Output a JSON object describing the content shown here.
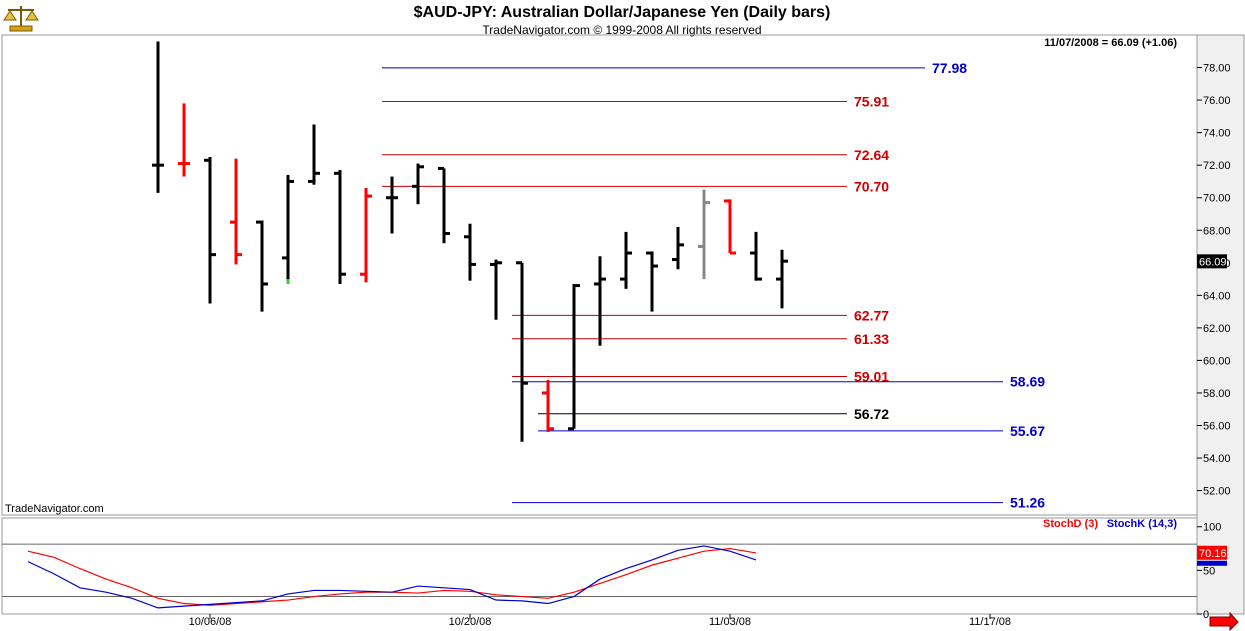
{
  "header": {
    "title": "$AUD-JPY:  Australian Dollar/Japanese Yen  (Daily bars)",
    "copyright": "TradeNavigator.com © 1999-2008 All rights reserved",
    "last_value": "11/07/2008 = 66.09 (+1.06)",
    "watermark": "TradeNavigator.com",
    "logo_icon": "balance-scale-icon"
  },
  "colors": {
    "up": "#000000",
    "down": "#ff0000",
    "red_level": "#cc0000",
    "blue_level": "#0000cc",
    "stoch_d": "#ff0000",
    "stoch_k": "#0000cc"
  },
  "chart_data": [
    {
      "type": "ohlc",
      "title": "$AUD-JPY:  Australian Dollar/Japanese Yen  (Daily bars)",
      "ylim": [
        50.5,
        80
      ],
      "y_ticks": [
        "52.00",
        "54.00",
        "56.00",
        "58.00",
        "60.00",
        "62.00",
        "64.00",
        "66.00",
        "68.00",
        "70.00",
        "72.00",
        "74.00",
        "76.00",
        "78.00"
      ],
      "x_ticks": [
        {
          "label": "10/06/08",
          "index": 2
        },
        {
          "label": "10/20/08",
          "index": 12
        },
        {
          "label": "11/03/08",
          "index": 22
        },
        {
          "label": "11/17/08",
          "index": 32
        }
      ],
      "current_price": "66.09",
      "bars": [
        {
          "i": 0,
          "o": 72.0,
          "h": 79.6,
          "l": 70.3,
          "c": 72.0,
          "color": "black"
        },
        {
          "i": 1,
          "o": 72.1,
          "h": 75.8,
          "l": 71.3,
          "c": 72.1,
          "color": "red"
        },
        {
          "i": 2,
          "o": 72.3,
          "h": 72.5,
          "l": 63.5,
          "c": 66.5,
          "color": "black"
        },
        {
          "i": 3,
          "o": 68.5,
          "h": 72.4,
          "l": 65.9,
          "c": 66.5,
          "color": "red"
        },
        {
          "i": 4,
          "o": 68.5,
          "h": 68.6,
          "l": 63.0,
          "c": 64.7,
          "color": "black"
        },
        {
          "i": 5,
          "o": 66.3,
          "h": 71.4,
          "l": 64.7,
          "c": 71.0,
          "color": "black"
        },
        {
          "i": 6,
          "o": 71.0,
          "h": 74.5,
          "l": 70.8,
          "c": 71.5,
          "color": "black"
        },
        {
          "i": 7,
          "o": 71.5,
          "h": 71.7,
          "l": 64.7,
          "c": 65.3,
          "color": "black"
        },
        {
          "i": 8,
          "o": 65.3,
          "h": 70.6,
          "l": 64.8,
          "c": 70.1,
          "color": "red"
        },
        {
          "i": 9,
          "o": 70.0,
          "h": 71.3,
          "l": 67.8,
          "c": 70.0,
          "color": "black"
        },
        {
          "i": 10,
          "o": 70.7,
          "h": 72.1,
          "l": 69.6,
          "c": 71.9,
          "color": "black"
        },
        {
          "i": 11,
          "o": 71.8,
          "h": 71.8,
          "l": 67.2,
          "c": 67.8,
          "color": "black"
        },
        {
          "i": 12,
          "o": 67.6,
          "h": 68.4,
          "l": 64.9,
          "c": 65.9,
          "color": "black"
        },
        {
          "i": 13,
          "o": 65.9,
          "h": 66.2,
          "l": 62.5,
          "c": 66.0,
          "color": "black"
        },
        {
          "i": 14,
          "o": 66.0,
          "h": 66.0,
          "l": 55.0,
          "c": 58.6,
          "color": "black"
        },
        {
          "i": 15,
          "o": 58.0,
          "h": 58.8,
          "l": 55.6,
          "c": 55.8,
          "color": "red"
        },
        {
          "i": 16,
          "o": 55.8,
          "h": 64.7,
          "l": 55.8,
          "c": 64.6,
          "color": "black"
        },
        {
          "i": 17,
          "o": 64.7,
          "h": 66.4,
          "l": 60.9,
          "c": 65.0,
          "color": "black"
        },
        {
          "i": 18,
          "o": 65.0,
          "h": 67.9,
          "l": 64.4,
          "c": 66.6,
          "color": "black"
        },
        {
          "i": 19,
          "o": 66.6,
          "h": 66.7,
          "l": 63.0,
          "c": 65.8,
          "color": "black"
        },
        {
          "i": 20,
          "o": 66.2,
          "h": 68.2,
          "l": 65.6,
          "c": 67.1,
          "color": "black"
        },
        {
          "i": 21,
          "o": 67.0,
          "h": 70.5,
          "l": 65.0,
          "c": 69.7,
          "color": "gray"
        },
        {
          "i": 22,
          "o": 69.8,
          "h": 69.9,
          "l": 66.6,
          "c": 66.6,
          "color": "red"
        },
        {
          "i": 23,
          "o": 66.6,
          "h": 67.9,
          "l": 64.9,
          "c": 65.0,
          "color": "black"
        },
        {
          "i": 24,
          "o": 65.0,
          "h": 66.8,
          "l": 63.2,
          "c": 66.1,
          "color": "black"
        }
      ],
      "levels": [
        {
          "value": 77.98,
          "label": "77.98",
          "color": "blue",
          "from": 9,
          "to": 29.5
        },
        {
          "value": 75.91,
          "label": "75.91",
          "color": "red",
          "from": 9,
          "to": 26.5
        },
        {
          "value": 72.64,
          "label": "72.64",
          "color": "red",
          "from": 9,
          "to": 26.5
        },
        {
          "value": 70.7,
          "label": "70.70",
          "color": "red",
          "from": 9,
          "to": 26.5
        },
        {
          "value": 62.77,
          "label": "62.77",
          "color": "red",
          "from": 14,
          "to": 26.5
        },
        {
          "value": 61.33,
          "label": "61.33",
          "color": "red",
          "from": 14,
          "to": 26.5
        },
        {
          "value": 59.01,
          "label": "59.01",
          "color": "red",
          "from": 14,
          "to": 26.5
        },
        {
          "value": 58.69,
          "label": "58.69",
          "color": "blue",
          "from": 14,
          "to": 32.5
        },
        {
          "value": 56.72,
          "label": "56.72",
          "color": "black",
          "from": 15,
          "to": 26.5
        },
        {
          "value": 55.67,
          "label": "55.67",
          "color": "blue",
          "from": 15,
          "to": 32.5
        },
        {
          "value": 51.26,
          "label": "51.26",
          "color": "blue",
          "from": 14,
          "to": 32.5
        }
      ]
    },
    {
      "type": "line",
      "legend": [
        "StochD (3)",
        "StochK (14,3)"
      ],
      "ylim": [
        0,
        110
      ],
      "y_ticks": [
        "0",
        "50",
        "100"
      ],
      "current_value": "70.16",
      "reference_lines": [
        80,
        20
      ],
      "series": [
        {
          "name": "StochD (3)",
          "color": "red",
          "values": [
            [
              -5,
              72
            ],
            [
              -4,
              65
            ],
            [
              -3,
              52
            ],
            [
              -2,
              40
            ],
            [
              -1,
              30
            ],
            [
              0,
              18
            ],
            [
              1,
              12
            ],
            [
              2,
              10
            ],
            [
              3,
              12
            ],
            [
              4,
              14
            ],
            [
              5,
              16
            ],
            [
              6,
              20
            ],
            [
              7,
              23
            ],
            [
              8,
              25
            ],
            [
              9,
              25
            ],
            [
              10,
              24
            ],
            [
              11,
              27
            ],
            [
              12,
              26
            ],
            [
              13,
              22
            ],
            [
              14,
              20
            ],
            [
              15,
              18
            ],
            [
              16,
              25
            ],
            [
              17,
              35
            ],
            [
              18,
              45
            ],
            [
              19,
              56
            ],
            [
              20,
              64
            ],
            [
              21,
              72
            ],
            [
              22,
              75
            ],
            [
              23,
              70
            ]
          ]
        },
        {
          "name": "StochK (14,3)",
          "color": "blue",
          "values": [
            [
              -5,
              60
            ],
            [
              -4,
              46
            ],
            [
              -3,
              30
            ],
            [
              -2,
              25
            ],
            [
              -1,
              18
            ],
            [
              0,
              7
            ],
            [
              1,
              9
            ],
            [
              2,
              11
            ],
            [
              3,
              13
            ],
            [
              4,
              15
            ],
            [
              5,
              23
            ],
            [
              6,
              27
            ],
            [
              7,
              27
            ],
            [
              8,
              26
            ],
            [
              9,
              25
            ],
            [
              10,
              32
            ],
            [
              11,
              30
            ],
            [
              12,
              28
            ],
            [
              13,
              16
            ],
            [
              14,
              15
            ],
            [
              15,
              12
            ],
            [
              16,
              20
            ],
            [
              17,
              40
            ],
            [
              18,
              52
            ],
            [
              19,
              62
            ],
            [
              20,
              73
            ],
            [
              21,
              78
            ],
            [
              22,
              72
            ],
            [
              23,
              62
            ]
          ]
        }
      ]
    }
  ]
}
